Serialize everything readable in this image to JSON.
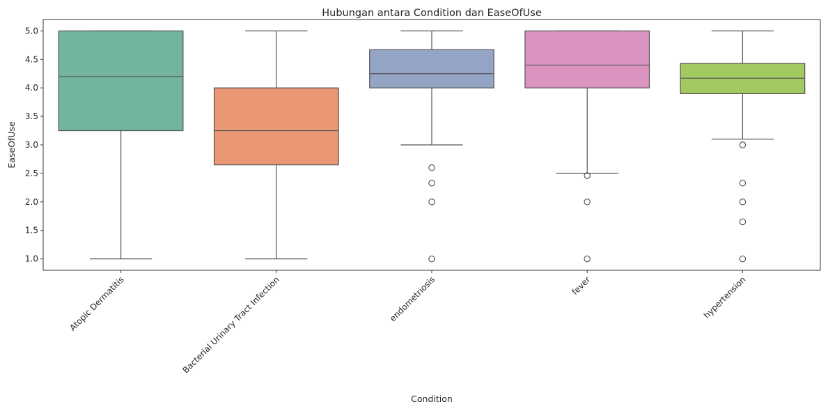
{
  "chart_data": {
    "type": "box",
    "title": "Hubungan antara Condition dan EaseOfUse",
    "xlabel": "Condition",
    "ylabel": "EaseOfUse",
    "ylim": [
      0.8,
      5.2
    ],
    "yticks": [
      "1.0",
      "1.5",
      "2.0",
      "2.5",
      "3.0",
      "3.5",
      "4.0",
      "4.5",
      "5.0"
    ],
    "categories": [
      "Atopic Dermatitis",
      "Bacterial Urinary Tract Infection",
      "endometriosis",
      "fever",
      "hypertension"
    ],
    "boxes": [
      {
        "category": "Atopic Dermatitis",
        "color": "#73b49f",
        "q1": 3.25,
        "median": 4.2,
        "q3": 5.0,
        "whisker_low": 1.0,
        "whisker_high": 5.0,
        "outliers": []
      },
      {
        "category": "Bacterial Urinary Tract Infection",
        "color": "#e99674",
        "q1": 2.65,
        "median": 3.25,
        "q3": 4.0,
        "whisker_low": 1.0,
        "whisker_high": 5.0,
        "outliers": []
      },
      {
        "category": "endometriosis",
        "color": "#93a4c5",
        "q1": 4.0,
        "median": 4.25,
        "q3": 4.67,
        "whisker_low": 3.0,
        "whisker_high": 5.0,
        "outliers": [
          2.6,
          2.33,
          2.0,
          1.0
        ]
      },
      {
        "category": "fever",
        "color": "#db94bf",
        "q1": 4.0,
        "median": 4.4,
        "q3": 5.0,
        "whisker_low": 2.5,
        "whisker_high": 5.0,
        "outliers": [
          2.46,
          2.0,
          1.0
        ]
      },
      {
        "category": "hypertension",
        "color": "#a3c963",
        "q1": 3.9,
        "median": 4.17,
        "q3": 4.43,
        "whisker_low": 3.1,
        "whisker_high": 5.0,
        "outliers": [
          3.0,
          2.33,
          2.0,
          1.65,
          1.0
        ]
      }
    ]
  }
}
